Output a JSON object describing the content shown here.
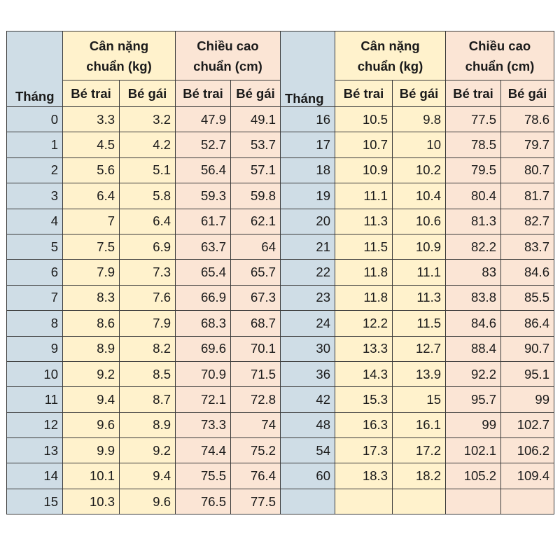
{
  "headers": {
    "month": "Tháng",
    "weight": "Cân nặng chuẩn (kg)",
    "weight_line1": "Cân nặng",
    "weight_line2": "chuẩn (kg)",
    "height_line1": "Chiều cao",
    "height_line2": "chuẩn (cm)",
    "boy": "Bé trai",
    "girl": "Bé gái"
  },
  "rows": [
    {
      "l": [
        "0",
        "3.3",
        "3.2",
        "47.9",
        "49.1"
      ],
      "r": [
        "16",
        "10.5",
        "9.8",
        "77.5",
        "78.6"
      ]
    },
    {
      "l": [
        "1",
        "4.5",
        "4.2",
        "52.7",
        "53.7"
      ],
      "r": [
        "17",
        "10.7",
        "10",
        "78.5",
        "79.7"
      ]
    },
    {
      "l": [
        "2",
        "5.6",
        "5.1",
        "56.4",
        "57.1"
      ],
      "r": [
        "18",
        "10.9",
        "10.2",
        "79.5",
        "80.7"
      ]
    },
    {
      "l": [
        "3",
        "6.4",
        "5.8",
        "59.3",
        "59.8"
      ],
      "r": [
        "19",
        "11.1",
        "10.4",
        "80.4",
        "81.7"
      ]
    },
    {
      "l": [
        "4",
        "7",
        "6.4",
        "61.7",
        "62.1"
      ],
      "r": [
        "20",
        "11.3",
        "10.6",
        "81.3",
        "82.7"
      ]
    },
    {
      "l": [
        "5",
        "7.5",
        "6.9",
        "63.7",
        "64"
      ],
      "r": [
        "21",
        "11.5",
        "10.9",
        "82.2",
        "83.7"
      ]
    },
    {
      "l": [
        "6",
        "7.9",
        "7.3",
        "65.4",
        "65.7"
      ],
      "r": [
        "22",
        "11.8",
        "11.1",
        "83",
        "84.6"
      ]
    },
    {
      "l": [
        "7",
        "8.3",
        "7.6",
        "66.9",
        "67.3"
      ],
      "r": [
        "23",
        "11.8",
        "11.3",
        "83.8",
        "85.5"
      ]
    },
    {
      "l": [
        "8",
        "8.6",
        "7.9",
        "68.3",
        "68.7"
      ],
      "r": [
        "24",
        "12.2",
        "11.5",
        "84.6",
        "86.4"
      ]
    },
    {
      "l": [
        "9",
        "8.9",
        "8.2",
        "69.6",
        "70.1"
      ],
      "r": [
        "30",
        "13.3",
        "12.7",
        "88.4",
        "90.7"
      ]
    },
    {
      "l": [
        "10",
        "9.2",
        "8.5",
        "70.9",
        "71.5"
      ],
      "r": [
        "36",
        "14.3",
        "13.9",
        "92.2",
        "95.1"
      ]
    },
    {
      "l": [
        "11",
        "9.4",
        "8.7",
        "72.1",
        "72.8"
      ],
      "r": [
        "42",
        "15.3",
        "15",
        "95.7",
        "99"
      ]
    },
    {
      "l": [
        "12",
        "9.6",
        "8.9",
        "73.3",
        "74"
      ],
      "r": [
        "48",
        "16.3",
        "16.1",
        "99",
        "102.7"
      ]
    },
    {
      "l": [
        "13",
        "9.9",
        "9.2",
        "74.4",
        "75.2"
      ],
      "r": [
        "54",
        "17.3",
        "17.2",
        "102.1",
        "106.2"
      ]
    },
    {
      "l": [
        "14",
        "10.1",
        "9.4",
        "75.5",
        "76.4"
      ],
      "r": [
        "60",
        "18.3",
        "18.2",
        "105.2",
        "109.4"
      ]
    },
    {
      "l": [
        "15",
        "10.3",
        "9.6",
        "76.5",
        "77.5"
      ],
      "r": [
        "",
        "",
        "",
        "",
        ""
      ]
    }
  ],
  "colors": {
    "month_bg": "#cfdde6",
    "weight_bg": "#fff2cc",
    "height_bg": "#fbe5d5",
    "border": "#3a3a3a"
  }
}
